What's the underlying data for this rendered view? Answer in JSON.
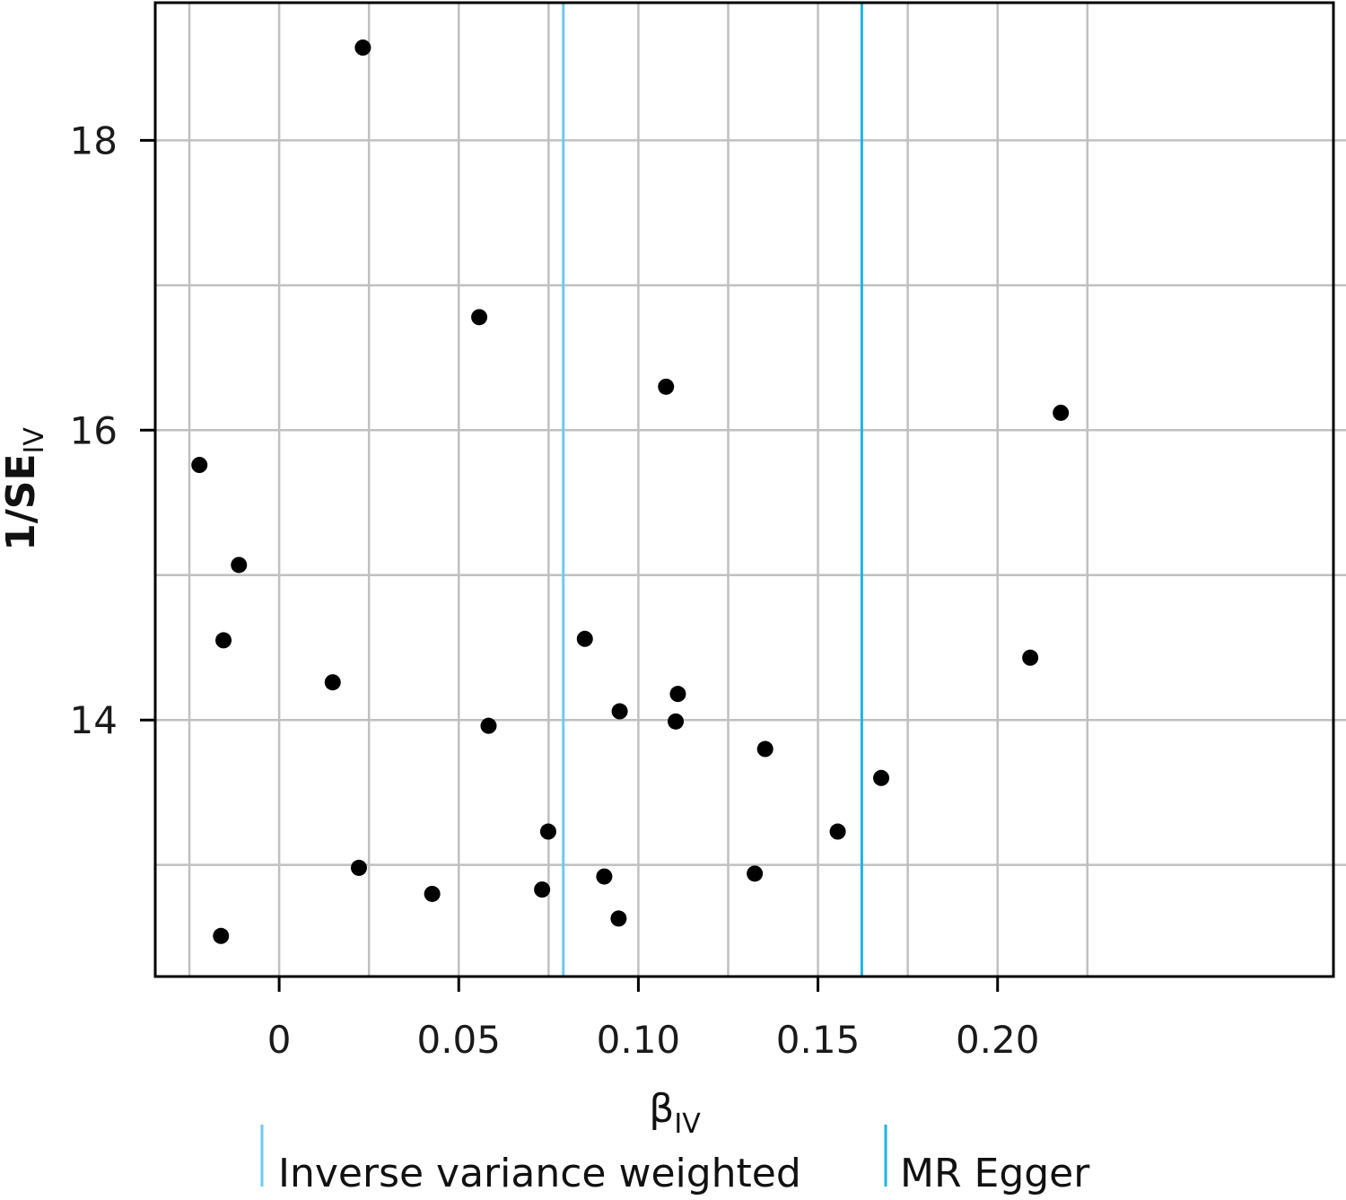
{
  "chart_data": {
    "type": "scatter",
    "xlabel": "β",
    "xlabel_sub": "IV",
    "ylabel": "1/SE",
    "ylabel_sub": "IV",
    "xlim": [
      -0.0345,
      0.2935
    ],
    "ylim": [
      12.23,
      18.95
    ],
    "x_ticks": [
      0,
      0.05,
      0.1,
      0.15,
      0.2
    ],
    "x_tick_labels": [
      "0",
      "0.05",
      "0.10",
      "0.15",
      "0.20"
    ],
    "x_minor_ticks": [
      -0.025,
      0.025,
      0.075,
      0.125,
      0.175,
      0.225
    ],
    "y_ticks": [
      14,
      16,
      18
    ],
    "y_tick_labels": [
      "14",
      "16",
      "18"
    ],
    "y_minor_ticks": [
      13,
      15,
      17
    ],
    "grid": true,
    "points": [
      {
        "x": 0.0233,
        "y": 18.64
      },
      {
        "x": 0.0557,
        "y": 16.78
      },
      {
        "x": 0.1077,
        "y": 16.3
      },
      {
        "x": 0.2176,
        "y": 16.12
      },
      {
        "x": -0.0222,
        "y": 15.76
      },
      {
        "x": -0.0112,
        "y": 15.07
      },
      {
        "x": -0.0155,
        "y": 14.55
      },
      {
        "x": 0.0851,
        "y": 14.56
      },
      {
        "x": 0.2091,
        "y": 14.43
      },
      {
        "x": 0.0149,
        "y": 14.26
      },
      {
        "x": 0.111,
        "y": 14.18
      },
      {
        "x": 0.0948,
        "y": 14.06
      },
      {
        "x": 0.1104,
        "y": 13.99
      },
      {
        "x": 0.0583,
        "y": 13.96
      },
      {
        "x": 0.1353,
        "y": 13.8
      },
      {
        "x": 0.1676,
        "y": 13.6
      },
      {
        "x": 0.0749,
        "y": 13.23
      },
      {
        "x": 0.1555,
        "y": 13.23
      },
      {
        "x": 0.0222,
        "y": 12.98
      },
      {
        "x": 0.0905,
        "y": 12.92
      },
      {
        "x": 0.1324,
        "y": 12.94
      },
      {
        "x": 0.0426,
        "y": 12.8
      },
      {
        "x": 0.0732,
        "y": 12.83
      },
      {
        "x": 0.0945,
        "y": 12.63
      },
      {
        "x": -0.0162,
        "y": 12.51
      }
    ],
    "reference_lines": [
      {
        "name": "Inverse variance weighted",
        "x": 0.0791,
        "color": "#6ccbef"
      },
      {
        "name": "MR Egger",
        "x": 0.1622,
        "color": "#1eb4e6"
      }
    ],
    "legend_position": "bottom",
    "colors": {
      "points": "#000000",
      "grid": "#c0c0c0",
      "axes": "#000000"
    }
  }
}
